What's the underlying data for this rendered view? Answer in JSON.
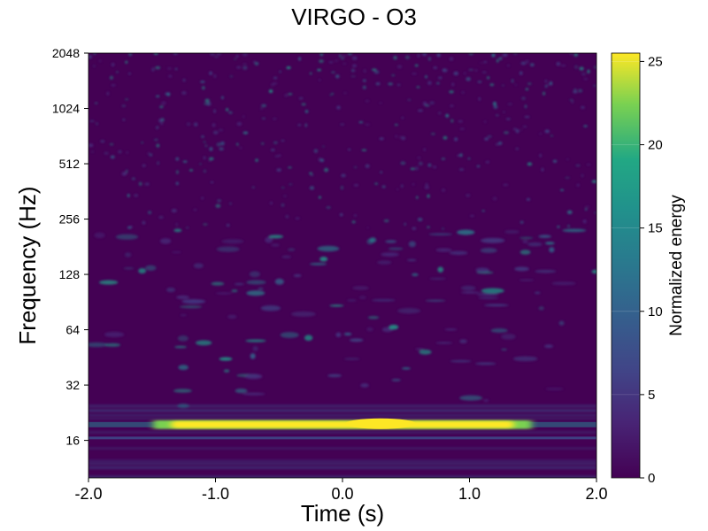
{
  "chart_data": {
    "type": "heatmap",
    "title": "VIRGO - O3",
    "xlabel": "Time (s)",
    "ylabel": "Frequency (Hz)",
    "colorbar_label": "Normalized energy",
    "colormap": "viridis",
    "xlim": [
      -2.0,
      2.0
    ],
    "ylim": [
      10,
      2048
    ],
    "yscale": "log2",
    "x_ticks": [
      "-2.0",
      "-1.0",
      "0.0",
      "1.0",
      "2.0"
    ],
    "y_ticks": [
      "16",
      "32",
      "64",
      "128",
      "256",
      "512",
      "1024",
      "2048"
    ],
    "colorbar_range": [
      0,
      25.5
    ],
    "colorbar_ticks": [
      "0",
      "5",
      "10",
      "15",
      "20",
      "25"
    ],
    "features": [
      {
        "label": "bright horizontal band",
        "frequency_hz": 19.5,
        "time_start_s": -1.35,
        "time_end_s": 1.35,
        "energy": 25.5
      },
      {
        "label": "weak horizontal line",
        "frequency_hz": 16.5,
        "time_start_s": -2.0,
        "time_end_s": 2.0,
        "energy": 4
      }
    ]
  }
}
